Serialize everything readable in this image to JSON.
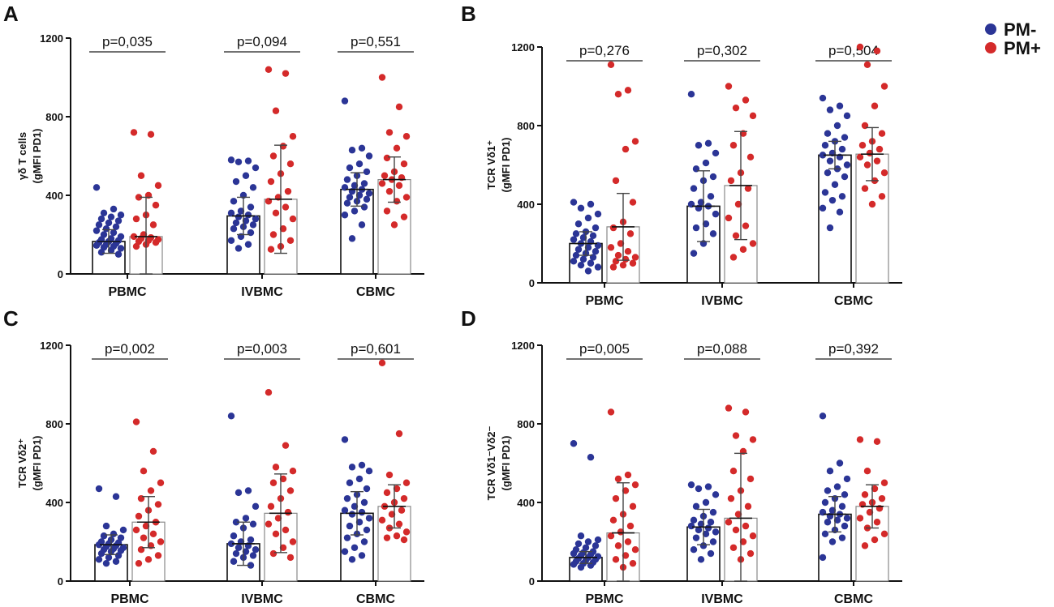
{
  "legend": [
    {
      "label": "PM-",
      "color": "#2b3596"
    },
    {
      "label": "PM+",
      "color": "#d42a2a"
    }
  ],
  "chart_data": [
    {
      "panel": "A",
      "type": "bar",
      "ylabel_line1": "γδ T cells",
      "ylabel_line2": "(gMFI PD1)",
      "ylim": [
        0,
        1200
      ],
      "yticks": [
        0,
        400,
        800,
        1200
      ],
      "categories": [
        "PBMC",
        "IVBMC",
        "CBMC"
      ],
      "p_values": [
        "p=0,035",
        "p=0,094",
        "p=0,551"
      ],
      "series": [
        {
          "name": "PM-",
          "values": [
            165,
            295,
            430
          ],
          "sd": [
            60,
            95,
            85
          ],
          "points": [
            [
              440,
              330,
              310,
              300,
              290,
              280,
              270,
              260,
              250,
              240,
              230,
              220,
              210,
              200,
              190,
              180,
              175,
              170,
              165,
              160,
              155,
              150,
              145,
              140,
              135,
              130,
              120,
              110,
              100
            ],
            [
              580,
              575,
              570,
              540,
              500,
              470,
              440,
              400,
              370,
              340,
              320,
              310,
              300,
              290,
              280,
              270,
              260,
              250,
              240,
              230,
              210,
              190,
              170,
              150,
              130
            ],
            [
              880,
              640,
              630,
              600,
              560,
              540,
              520,
              500,
              480,
              460,
              450,
              440,
              430,
              420,
              410,
              400,
              390,
              380,
              370,
              360,
              340,
              320,
              300,
              250,
              180
            ]
          ]
        },
        {
          "name": "PM+",
          "values": [
            190,
            380,
            480
          ],
          "sd": [
            200,
            275,
            115
          ],
          "points": [
            [
              720,
              710,
              500,
              450,
              400,
              390,
              350,
              300,
              280,
              250,
              200,
              190,
              185,
              180,
              175,
              170,
              165,
              160,
              150,
              140
            ],
            [
              1040,
              1020,
              830,
              700,
              650,
              600,
              560,
              510,
              470,
              420,
              390,
              370,
              340,
              310,
              280,
              230,
              200,
              170,
              140,
              125
            ],
            [
              1000,
              850,
              720,
              700,
              640,
              590,
              560,
              520,
              500,
              490,
              480,
              460,
              450,
              420,
              390,
              370,
              320,
              290,
              250
            ]
          ]
        }
      ]
    },
    {
      "panel": "B",
      "type": "bar",
      "ylabel_line1": "TCR Vδ1⁺",
      "ylabel_line2": "(gMFI PD1)",
      "ylim": [
        0,
        1200
      ],
      "yticks": [
        0,
        400,
        800,
        1200
      ],
      "categories": [
        "PBMC",
        "IVBMC",
        "CBMC"
      ],
      "p_values": [
        "p=0,276",
        "p=0,302",
        "p=0,504"
      ],
      "series": [
        {
          "name": "PM-",
          "values": [
            200,
            390,
            650
          ],
          "sd": [
            60,
            180,
            70
          ],
          "points": [
            [
              410,
              400,
              380,
              350,
              330,
              300,
              280,
              260,
              250,
              240,
              230,
              220,
              210,
              200,
              190,
              180,
              170,
              160,
              150,
              140,
              130,
              120,
              110,
              100,
              90,
              80,
              60
            ],
            [
              960,
              710,
              700,
              660,
              610,
              580,
              540,
              520,
              480,
              440,
              410,
              400,
              390,
              380,
              350,
              300,
              280,
              250,
              200,
              150
            ],
            [
              940,
              900,
              880,
              850,
              800,
              760,
              740,
              720,
              700,
              680,
              660,
              650,
              640,
              620,
              600,
              580,
              560,
              540,
              500,
              460,
              440,
              420,
              380,
              360,
              280
            ]
          ]
        },
        {
          "name": "PM+",
          "values": [
            285,
            495,
            655
          ],
          "sd": [
            170,
            275,
            135
          ],
          "points": [
            [
              1110,
              980,
              960,
              720,
              680,
              520,
              410,
              310,
              280,
              250,
              200,
              180,
              160,
              140,
              130,
              120,
              110,
              100,
              90,
              80
            ],
            [
              1000,
              930,
              890,
              850,
              760,
              700,
              640,
              560,
              520,
              480,
              400,
              330,
              290,
              240,
              200,
              170,
              130
            ],
            [
              1200,
              1180,
              1110,
              1000,
              900,
              800,
              760,
              720,
              700,
              680,
              660,
              640,
              620,
              600,
              560,
              520,
              480,
              440,
              400
            ]
          ]
        }
      ]
    },
    {
      "panel": "C",
      "type": "bar",
      "ylabel_line1": "TCR Vδ2⁺",
      "ylabel_line2": "(gMFI PD1)",
      "ylim": [
        0,
        1200
      ],
      "yticks": [
        0,
        400,
        800,
        1200
      ],
      "categories": [
        "PBMC",
        "IVBMC",
        "CBMC"
      ],
      "p_values": [
        "p=0,002",
        "p=0,003",
        "p=0,601"
      ],
      "series": [
        {
          "name": "PM-",
          "values": [
            185,
            190,
            345
          ],
          "sd": [
            50,
            110,
            110
          ],
          "points": [
            [
              470,
              430,
              280,
              260,
              240,
              230,
              220,
              210,
              200,
              195,
              190,
              185,
              180,
              175,
              170,
              165,
              160,
              155,
              150,
              140,
              130,
              120,
              110,
              100,
              90
            ],
            [
              840,
              460,
              450,
              380,
              320,
              300,
              290,
              270,
              230,
              210,
              200,
              190,
              180,
              170,
              160,
              150,
              140,
              130,
              120,
              100,
              80
            ],
            [
              720,
              590,
              580,
              560,
              520,
              500,
              470,
              440,
              420,
              400,
              380,
              360,
              350,
              340,
              320,
              300,
              280,
              260,
              240,
              220,
              200,
              170,
              150,
              130,
              110
            ]
          ]
        },
        {
          "name": "PM+",
          "values": [
            300,
            345,
            380
          ],
          "sd": [
            130,
            200,
            110
          ],
          "points": [
            [
              810,
              660,
              560,
              500,
              460,
              420,
              390,
              360,
              330,
              300,
              280,
              260,
              240,
              220,
              200,
              180,
              160,
              130,
              110,
              90
            ],
            [
              960,
              690,
              580,
              560,
              520,
              500,
              460,
              420,
              380,
              350,
              320,
              290,
              260,
              240,
              200,
              170,
              140,
              120
            ],
            [
              1110,
              750,
              540,
              500,
              470,
              450,
              420,
              400,
              380,
              360,
              340,
              310,
              290,
              270,
              250,
              230,
              220,
              210
            ]
          ]
        }
      ]
    },
    {
      "panel": "D",
      "type": "bar",
      "ylabel_line1": "TCR Vδ1⁻Vδ2⁻",
      "ylabel_line2": "(gMFI PD1)",
      "ylim": [
        0,
        1200
      ],
      "yticks": [
        0,
        400,
        800,
        1200
      ],
      "categories": [
        "PBMC",
        "IVBMC",
        "CBMC"
      ],
      "p_values": [
        "p=0,005",
        "p=0,088",
        "p=0,392"
      ],
      "series": [
        {
          "name": "PM-",
          "values": [
            120,
            275,
            340
          ],
          "sd": [
            30,
            90,
            90
          ],
          "points": [
            [
              700,
              630,
              230,
              210,
              200,
              190,
              180,
              170,
              160,
              150,
              145,
              140,
              135,
              130,
              125,
              120,
              115,
              110,
              105,
              100,
              95,
              90,
              85,
              80,
              70
            ],
            [
              490,
              480,
              470,
              440,
              400,
              380,
              350,
              330,
              310,
              300,
              290,
              280,
              270,
              260,
              250,
              240,
              220,
              200,
              180,
              160,
              140,
              110
            ],
            [
              840,
              600,
              560,
              520,
              480,
              460,
              440,
              420,
              400,
              380,
              360,
              350,
              340,
              330,
              320,
              310,
              300,
              280,
              260,
              240,
              220,
              200,
              120
            ]
          ]
        },
        {
          "name": "PM+",
          "values": [
            245,
            320,
            380
          ],
          "sd": [
            255,
            330,
            110
          ],
          "points": [
            [
              860,
              540,
              520,
              490,
              460,
              420,
              380,
              340,
              310,
              280,
              250,
              230,
              200,
              180,
              160,
              130,
              110,
              90,
              70
            ],
            [
              880,
              860,
              740,
              720,
              660,
              560,
              520,
              460,
              420,
              380,
              340,
              300,
              280,
              260,
              230,
              200,
              170,
              140,
              110
            ],
            [
              720,
              710,
              560,
              500,
              470,
              440,
              420,
              400,
              390,
              370,
              350,
              320,
              300,
              270,
              240,
              210,
              180
            ]
          ]
        }
      ]
    }
  ]
}
